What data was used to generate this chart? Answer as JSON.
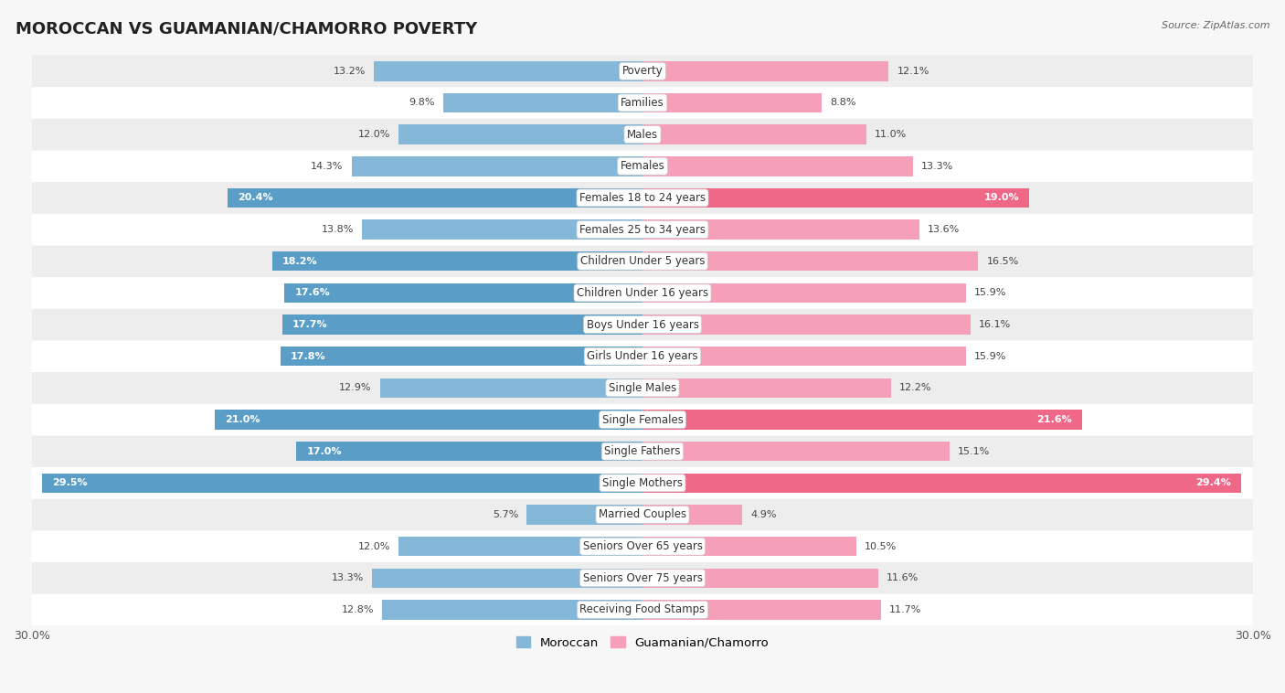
{
  "title": "MOROCCAN VS GUAMANIAN/CHAMORRO POVERTY",
  "source": "Source: ZipAtlas.com",
  "categories": [
    "Poverty",
    "Families",
    "Males",
    "Females",
    "Females 18 to 24 years",
    "Females 25 to 34 years",
    "Children Under 5 years",
    "Children Under 16 years",
    "Boys Under 16 years",
    "Girls Under 16 years",
    "Single Males",
    "Single Females",
    "Single Fathers",
    "Single Mothers",
    "Married Couples",
    "Seniors Over 65 years",
    "Seniors Over 75 years",
    "Receiving Food Stamps"
  ],
  "moroccan": [
    13.2,
    9.8,
    12.0,
    14.3,
    20.4,
    13.8,
    18.2,
    17.6,
    17.7,
    17.8,
    12.9,
    21.0,
    17.0,
    29.5,
    5.7,
    12.0,
    13.3,
    12.8
  ],
  "guamanian": [
    12.1,
    8.8,
    11.0,
    13.3,
    19.0,
    13.6,
    16.5,
    15.9,
    16.1,
    15.9,
    12.2,
    21.6,
    15.1,
    29.4,
    4.9,
    10.5,
    11.6,
    11.7
  ],
  "moroccan_color": "#85b8d8",
  "guamanian_color": "#f5a0b8",
  "moroccan_highlight_color": "#5a9ec8",
  "guamanian_highlight_color": "#f06888",
  "highlight_threshold": 17.0,
  "background_color": "#f7f7f7",
  "row_bg_light": "#ffffff",
  "row_bg_dark": "#ededee",
  "axis_max": 30.0,
  "label_fontsize": 8.5,
  "title_fontsize": 13,
  "value_fontsize": 8.0,
  "bar_height": 0.62
}
